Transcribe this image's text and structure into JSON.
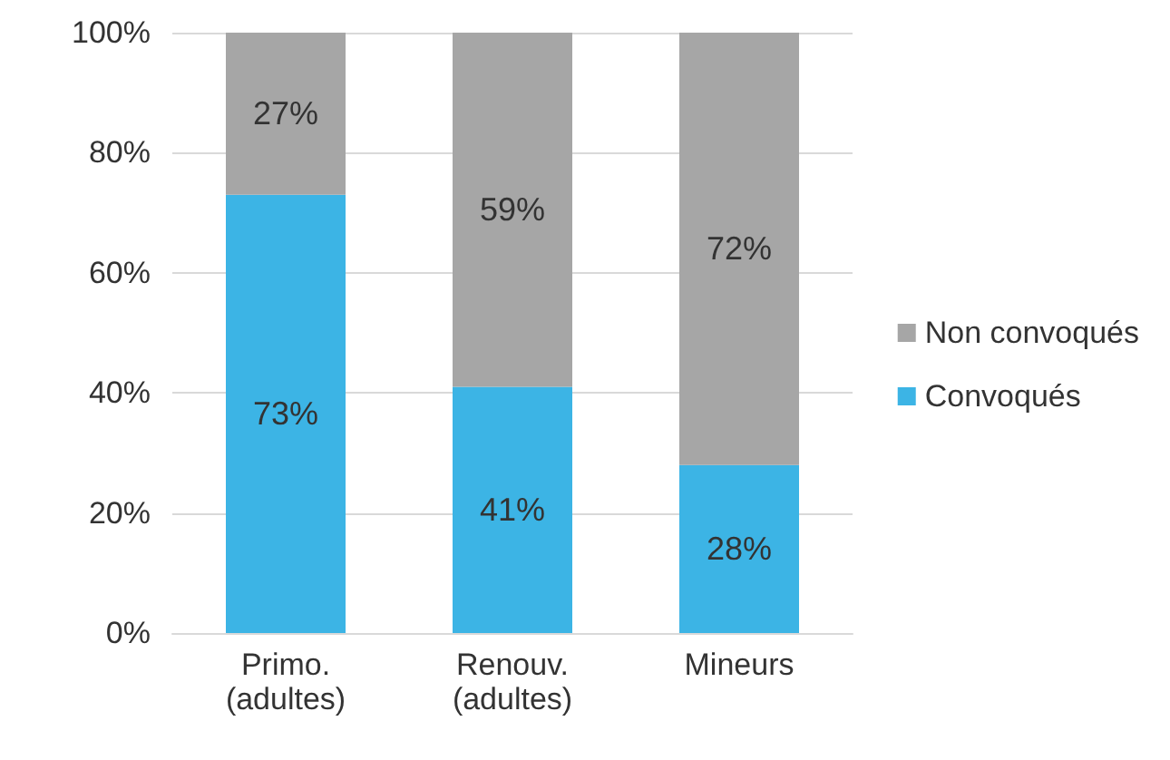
{
  "chart_data": {
    "type": "bar",
    "stacked": true,
    "categories": [
      "Primo.\n(adultes)",
      "Renouv.\n(adultes)",
      "Mineurs"
    ],
    "series": [
      {
        "name": "Convoqués",
        "color": "#3cb4e5",
        "values": [
          73,
          41,
          28
        ],
        "value_labels": [
          "73%",
          "41%",
          "28%"
        ]
      },
      {
        "name": "Non convoqués",
        "color": "#a6a6a6",
        "values": [
          27,
          59,
          72
        ],
        "value_labels": [
          "27%",
          "59%",
          "72%"
        ]
      }
    ],
    "ylim": [
      0,
      100
    ],
    "yticks": [
      {
        "value": 0,
        "label": "0%"
      },
      {
        "value": 20,
        "label": "20%"
      },
      {
        "value": 40,
        "label": "40%"
      },
      {
        "value": 60,
        "label": "60%"
      },
      {
        "value": 80,
        "label": "80%"
      },
      {
        "value": 100,
        "label": "100%"
      }
    ],
    "grid": "y",
    "legend": "right"
  }
}
